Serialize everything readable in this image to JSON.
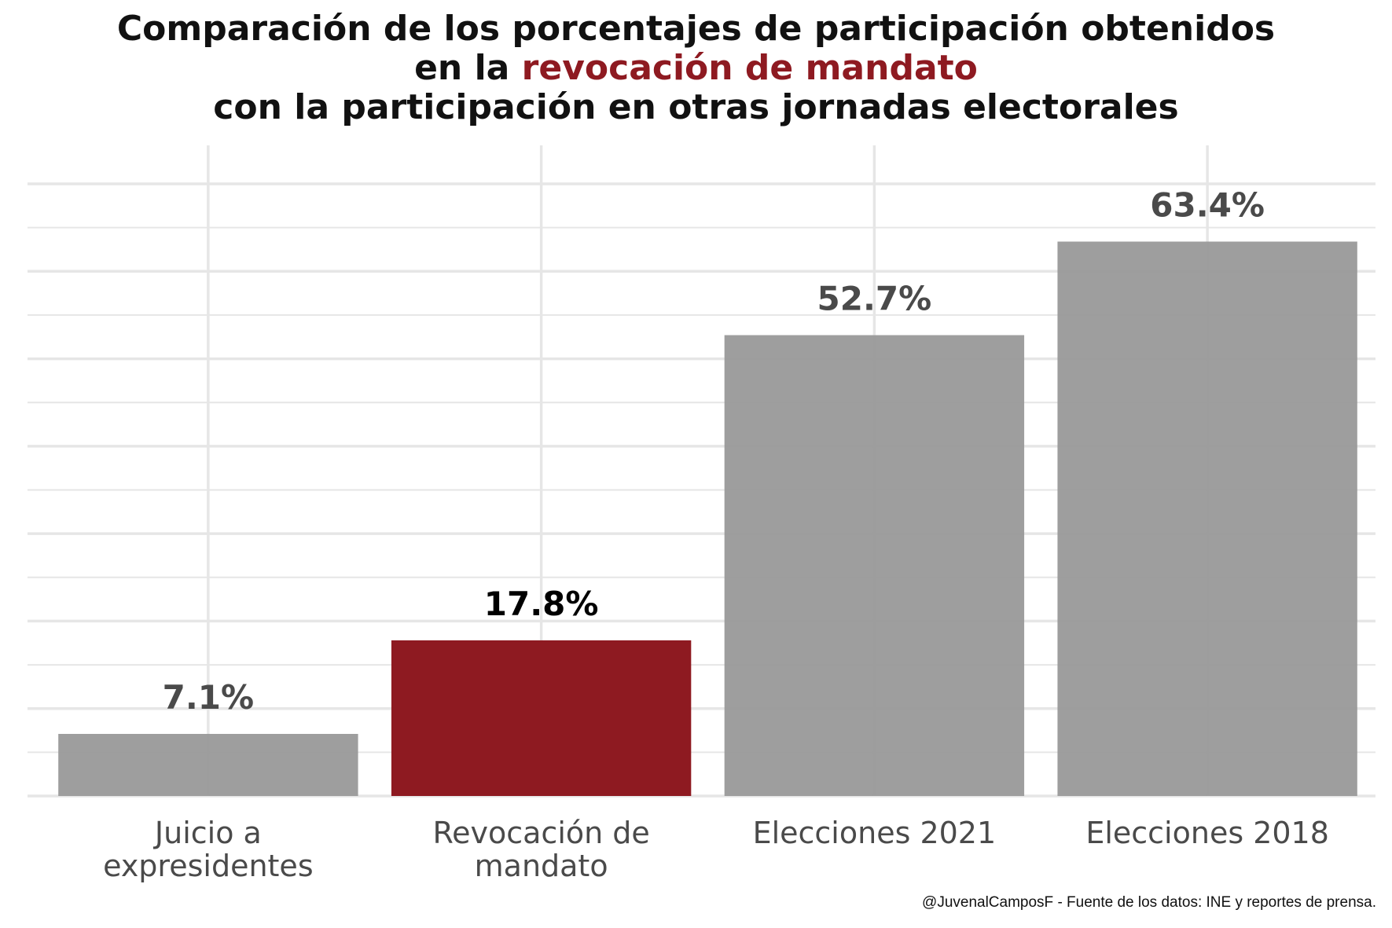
{
  "title": {
    "line1": "Comparación de los porcentajes de participación obtenidos",
    "line2_prefix": "en la ",
    "line2_highlight": "revocación de mandato",
    "line3": "con la participación en otras jornadas electorales"
  },
  "colors": {
    "default_bar": "#999999",
    "highlight_bar": "#8e1a21",
    "default_label": "#4a4a4a",
    "highlight_label": "#000000",
    "grid": "#e6e6e6"
  },
  "chart_data": {
    "type": "bar",
    "categories": [
      [
        "Juicio a",
        "expresidentes"
      ],
      [
        "Revocación de",
        "mandato"
      ],
      [
        "Elecciones 2021"
      ],
      [
        "Elecciones 2018"
      ]
    ],
    "values": [
      7.1,
      17.8,
      52.7,
      63.4
    ],
    "value_labels": [
      "7.1%",
      "17.8%",
      "52.7%",
      "63.4%"
    ],
    "highlight_index": 1,
    "ylim": [
      0,
      70
    ],
    "y_axis_labels_shown": false,
    "grid": true
  },
  "caption": "@JuvenalCamposF - Fuente de los datos: INE y reportes de prensa."
}
